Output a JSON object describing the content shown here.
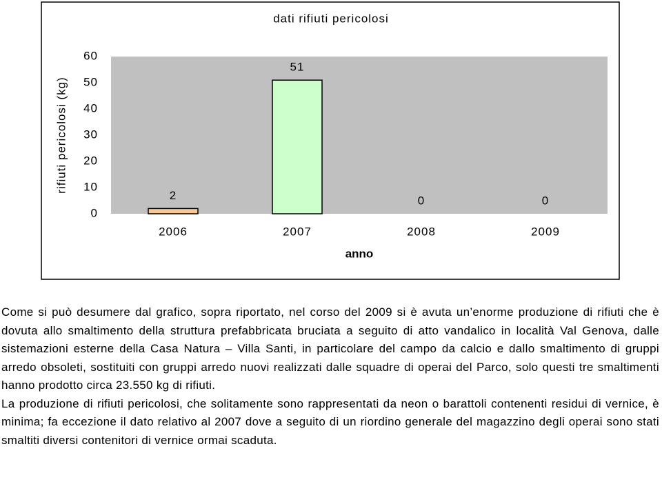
{
  "chart_data": {
    "type": "bar",
    "title": "dati rifiuti pericolosi",
    "y_label": "rifiuti pericolosi (kg)",
    "x_label": "anno",
    "categories": [
      "2006",
      "2007",
      "2008",
      "2009"
    ],
    "values": [
      2,
      51,
      0,
      0
    ],
    "colors": [
      "#f8c898",
      "#ccffcc",
      "#ccffcc",
      "#ccffcc"
    ],
    "plot_background": "#c0c0c0",
    "ylim": [
      0,
      60
    ],
    "yticks": [
      0,
      10,
      20,
      30,
      40,
      50,
      60
    ],
    "grid": false
  },
  "paragraphs": [
    "Come si può desumere dal grafico, sopra riportato, nel corso del 2009 si è avuta un’enorme produzione di rifiuti che è dovuta allo smaltimento della struttura prefabbricata bruciata a seguito di atto vandalico in località Val Genova, dalle sistemazioni esterne della Casa Natura – Villa Santi, in particolare del campo da calcio e dallo smaltimento di gruppi arredo obsoleti, sostituiti con gruppi arredo nuovi realizzati dalle squadre di operai del Parco, solo questi tre smaltimenti hanno prodotto circa 23.550 kg di rifiuti.",
    "La produzione di rifiuti pericolosi, che solitamente sono rappresentati da neon o barattoli contenenti residui di vernice, è minima; fa eccezione il dato relativo al 2007 dove a seguito di un riordino generale del magazzino degli operai sono stati smaltiti diversi contenitori di vernice ormai scaduta."
  ]
}
